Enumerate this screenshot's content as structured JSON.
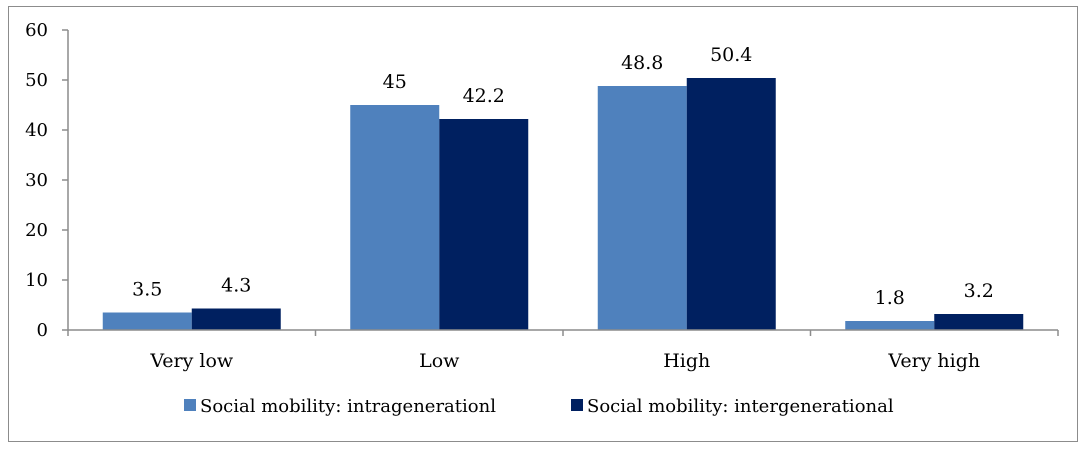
{
  "chart_data": {
    "type": "bar",
    "title": "",
    "xlabel": "",
    "ylabel": "",
    "categories": [
      "Very low",
      "Low",
      "High",
      "Very high"
    ],
    "series": [
      {
        "name": "Social mobility: intragenerationl",
        "color": "#4F81BD",
        "values": [
          3.5,
          45,
          48.8,
          1.8
        ],
        "labels": [
          "3.5",
          "45",
          "48.8",
          "1.8"
        ]
      },
      {
        "name": "Social mobility: intergenerational",
        "color": "#002060",
        "values": [
          4.3,
          42.2,
          50.4,
          3.2
        ],
        "labels": [
          "4.3",
          "42.2",
          "50.4",
          "3.2"
        ]
      }
    ],
    "ylim": [
      0,
      60
    ],
    "yticks": [
      0,
      10,
      20,
      30,
      40,
      50,
      60
    ],
    "grid": false,
    "legend": "bottom"
  }
}
